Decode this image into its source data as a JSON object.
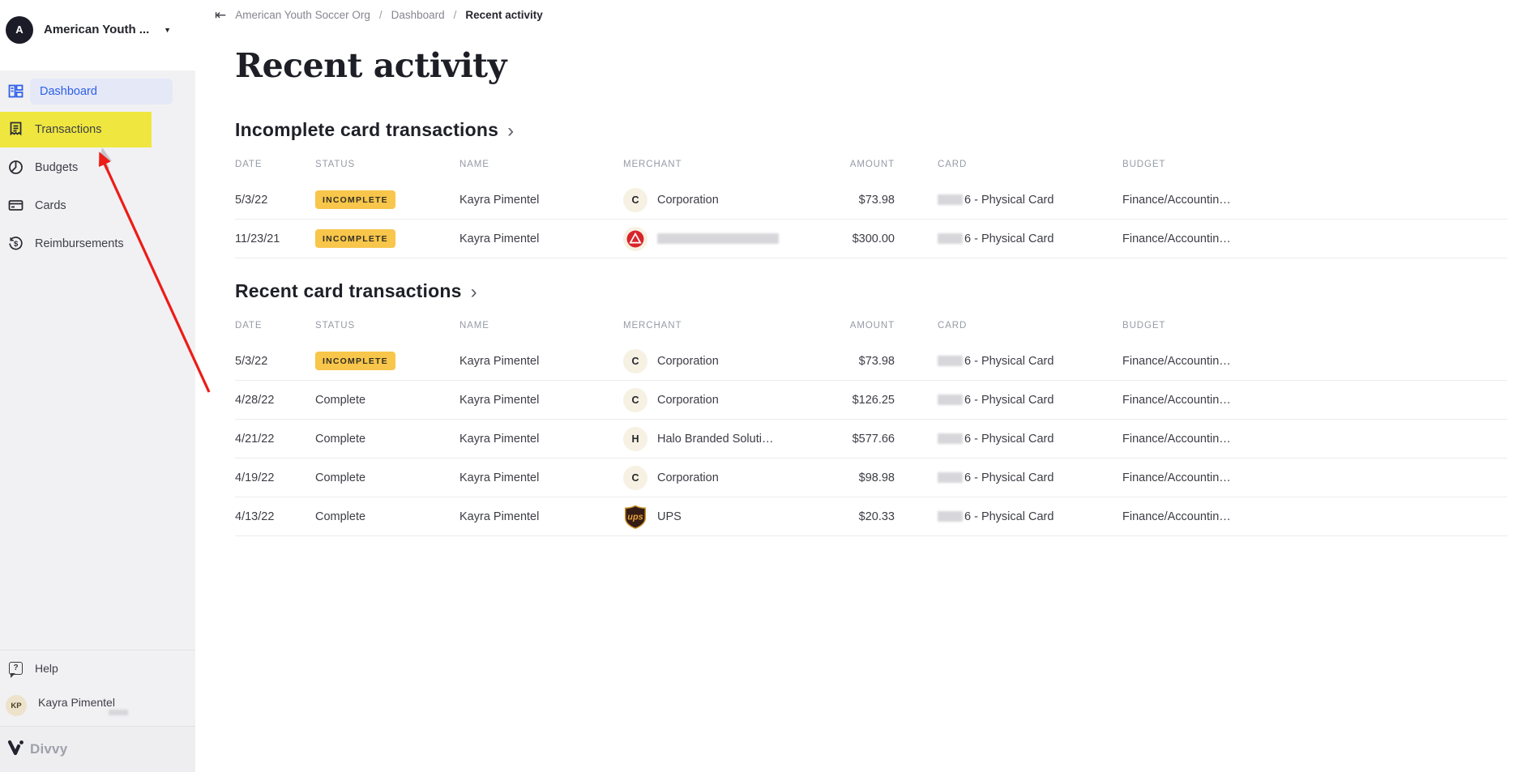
{
  "colors": {
    "accent": "#2d5fe8",
    "highlight": "#efe73f",
    "badge": "#f7c64a",
    "arrow": "#ed1c16"
  },
  "sidebar": {
    "org": {
      "avatar_initial": "A",
      "name": "American Youth ..."
    },
    "items": [
      {
        "label": "Dashboard",
        "state": "active"
      },
      {
        "label": "Transactions",
        "state": "highlighted-annotation"
      },
      {
        "label": "Budgets"
      },
      {
        "label": "Cards"
      },
      {
        "label": "Reimbursements"
      }
    ],
    "help_label": "Help",
    "user": {
      "initials": "KP",
      "name": "Kayra Pimentel"
    }
  },
  "brand": {
    "name": "Divvy"
  },
  "breadcrumb": {
    "items": [
      "American Youth Soccer Org",
      "Dashboard",
      "Recent activity"
    ],
    "separator": "/"
  },
  "page_title": "Recent activity",
  "sections": [
    {
      "title": "Incomplete card transactions",
      "columns": [
        "DATE",
        "STATUS",
        "NAME",
        "MERCHANT",
        "AMOUNT",
        "CARD",
        "BUDGET"
      ],
      "rows": [
        {
          "date": "5/3/22",
          "status": {
            "label": "INCOMPLETE",
            "badge": true
          },
          "name": "Kayra Pimentel",
          "merchant": {
            "type": "letter",
            "letter": "C",
            "label": "Corporation"
          },
          "amount": "$73.98",
          "card": {
            "redacted_prefix": true,
            "label": "6 - Physical Card"
          },
          "budget": "Finance/Accountin…"
        },
        {
          "date": "11/23/21",
          "status": {
            "label": "INCOMPLETE",
            "badge": true
          },
          "name": "Kayra Pimentel",
          "merchant": {
            "type": "logo-red",
            "label": "",
            "redacted": true
          },
          "amount": "$300.00",
          "card": {
            "redacted_prefix": true,
            "label": "6 - Physical Card"
          },
          "budget": "Finance/Accountin…"
        }
      ]
    },
    {
      "title": "Recent card transactions",
      "columns": [
        "DATE",
        "STATUS",
        "NAME",
        "MERCHANT",
        "AMOUNT",
        "CARD",
        "BUDGET"
      ],
      "rows": [
        {
          "date": "5/3/22",
          "status": {
            "label": "INCOMPLETE",
            "badge": true
          },
          "name": "Kayra Pimentel",
          "merchant": {
            "type": "letter",
            "letter": "C",
            "label": "Corporation"
          },
          "amount": "$73.98",
          "card": {
            "redacted_prefix": true,
            "label": "6 - Physical Card"
          },
          "budget": "Finance/Accountin…"
        },
        {
          "date": "4/28/22",
          "status": {
            "label": "Complete"
          },
          "name": "Kayra Pimentel",
          "merchant": {
            "type": "letter",
            "letter": "C",
            "label": "Corporation"
          },
          "amount": "$126.25",
          "card": {
            "redacted_prefix": true,
            "label": "6 - Physical Card"
          },
          "budget": "Finance/Accountin…"
        },
        {
          "date": "4/21/22",
          "status": {
            "label": "Complete"
          },
          "name": "Kayra Pimentel",
          "merchant": {
            "type": "letter",
            "letter": "H",
            "label": "Halo Branded Soluti…"
          },
          "amount": "$577.66",
          "card": {
            "redacted_prefix": true,
            "label": "6 - Physical Card"
          },
          "budget": "Finance/Accountin…"
        },
        {
          "date": "4/19/22",
          "status": {
            "label": "Complete"
          },
          "name": "Kayra Pimentel",
          "merchant": {
            "type": "letter",
            "letter": "C",
            "label": "Corporation"
          },
          "amount": "$98.98",
          "card": {
            "redacted_prefix": true,
            "label": "6 - Physical Card"
          },
          "budget": "Finance/Accountin…"
        },
        {
          "date": "4/13/22",
          "status": {
            "label": "Complete"
          },
          "name": "Kayra Pimentel",
          "merchant": {
            "type": "logo-ups",
            "label": "UPS"
          },
          "amount": "$20.33",
          "card": {
            "redacted_prefix": true,
            "label": "6 - Physical Card"
          },
          "budget": "Finance/Accountin…"
        }
      ]
    }
  ]
}
